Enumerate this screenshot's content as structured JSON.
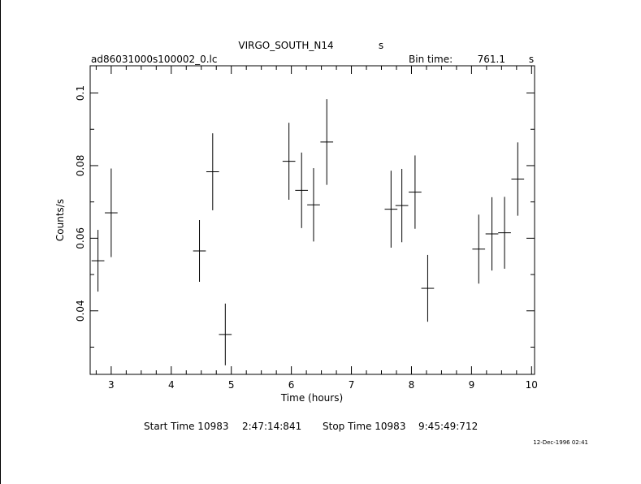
{
  "chart_data": {
    "type": "scatter",
    "title": "VIRGO_SOUTH_N14",
    "title_unit": "s",
    "subtitle_left": "ad86031000s100002_0.lc",
    "bin_time_label": "Bin time:",
    "bin_time_value": "761.1",
    "bin_time_unit": "s",
    "xlabel": "Time (hours)",
    "ylabel": "Counts/s",
    "xlim": [
      2.65,
      10.05
    ],
    "ylim": [
      0.0225,
      0.1075
    ],
    "x_ticks": [
      "3",
      "4",
      "5",
      "6",
      "7",
      "8",
      "9",
      "10"
    ],
    "y_ticks": [
      "0.04",
      "0.06",
      "0.08",
      "0.1"
    ],
    "series": [
      {
        "x_err": 0.106,
        "points": [
          {
            "x": 2.78,
            "y": 0.0538,
            "yerr": 0.0085
          },
          {
            "x": 3.0,
            "y": 0.067,
            "yerr": 0.0122
          },
          {
            "x": 4.47,
            "y": 0.0565,
            "yerr": 0.0085
          },
          {
            "x": 4.69,
            "y": 0.0783,
            "yerr": 0.0106
          },
          {
            "x": 4.9,
            "y": 0.0335,
            "yerr": 0.0085
          },
          {
            "x": 5.96,
            "y": 0.0812,
            "yerr": 0.0106
          },
          {
            "x": 6.17,
            "y": 0.0732,
            "yerr": 0.0104
          },
          {
            "x": 6.37,
            "y": 0.0692,
            "yerr": 0.0101
          },
          {
            "x": 6.59,
            "y": 0.0865,
            "yerr": 0.0118
          },
          {
            "x": 7.66,
            "y": 0.068,
            "yerr": 0.0106
          },
          {
            "x": 7.84,
            "y": 0.069,
            "yerr": 0.0101
          },
          {
            "x": 8.06,
            "y": 0.0727,
            "yerr": 0.0101
          },
          {
            "x": 8.27,
            "y": 0.0462,
            "yerr": 0.0092
          },
          {
            "x": 9.12,
            "y": 0.057,
            "yerr": 0.0095
          },
          {
            "x": 9.34,
            "y": 0.0612,
            "yerr": 0.0101
          },
          {
            "x": 9.55,
            "y": 0.0615,
            "yerr": 0.0099
          },
          {
            "x": 9.77,
            "y": 0.0763,
            "yerr": 0.0101
          }
        ]
      }
    ],
    "grid": false,
    "legend": "none"
  },
  "footer": {
    "start_label": "Start Time 10983",
    "start_time": "2:47:14:841",
    "stop_label": "Stop Time 10983",
    "stop_time": "9:45:49:712",
    "stamp": "12-Dec-1996 02:41"
  }
}
